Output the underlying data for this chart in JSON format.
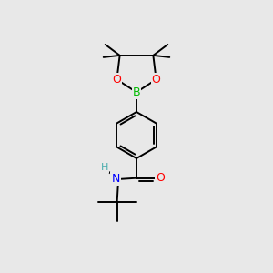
{
  "bg_color": "#e8e8e8",
  "atom_colors": {
    "B": "#00bb00",
    "O": "#ff0000",
    "N": "#0000ff",
    "H": "#4aadad",
    "C": "#000000"
  },
  "bond_color": "#000000",
  "bond_width": 1.4,
  "figsize": [
    3.0,
    3.0
  ],
  "dpi": 100
}
